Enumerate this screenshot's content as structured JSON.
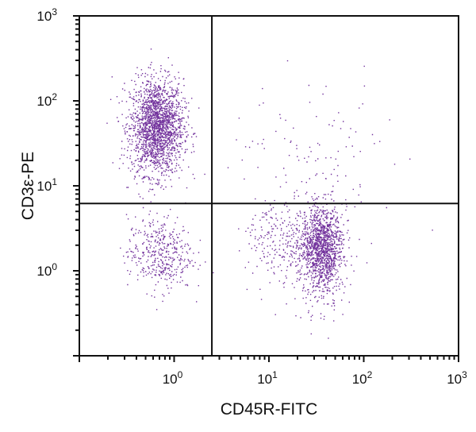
{
  "chart_data": {
    "type": "scatter",
    "title": "",
    "xlabel": "CD45R-FITC",
    "ylabel": "CD3ε-PE",
    "x_scale": "log",
    "y_scale": "log",
    "xlim": [
      0.1,
      1000
    ],
    "ylim": [
      0.1,
      1000
    ],
    "x_tick_labels": [
      {
        "value": 1,
        "base": "10",
        "exp": "0"
      },
      {
        "value": 10,
        "base": "10",
        "exp": "1"
      },
      {
        "value": 100,
        "base": "10",
        "exp": "2"
      },
      {
        "value": 1000,
        "base": "10",
        "exp": "3"
      }
    ],
    "y_tick_labels": [
      {
        "value": 1,
        "base": "10",
        "exp": "0"
      },
      {
        "value": 10,
        "base": "10",
        "exp": "1"
      },
      {
        "value": 100,
        "base": "10",
        "exp": "2"
      },
      {
        "value": 1000,
        "base": "10",
        "exp": "3"
      }
    ],
    "grid": false,
    "quadrant_gates": {
      "x": 2.5,
      "y": 6.2
    },
    "point_color": "#5b0f8c",
    "populations": [
      {
        "quadrant": "upper-left",
        "x_center": 0.65,
        "y_center": 50,
        "events": 2000
      },
      {
        "quadrant": "lower-left",
        "x_center": 0.7,
        "y_center": 1.6,
        "events": 420
      },
      {
        "quadrant": "lower-right",
        "x_center": 36,
        "y_center": 2.0,
        "events": 2200
      },
      {
        "quadrant": "upper-right",
        "x_center": 30,
        "y_center": 20,
        "events": 120
      }
    ]
  }
}
